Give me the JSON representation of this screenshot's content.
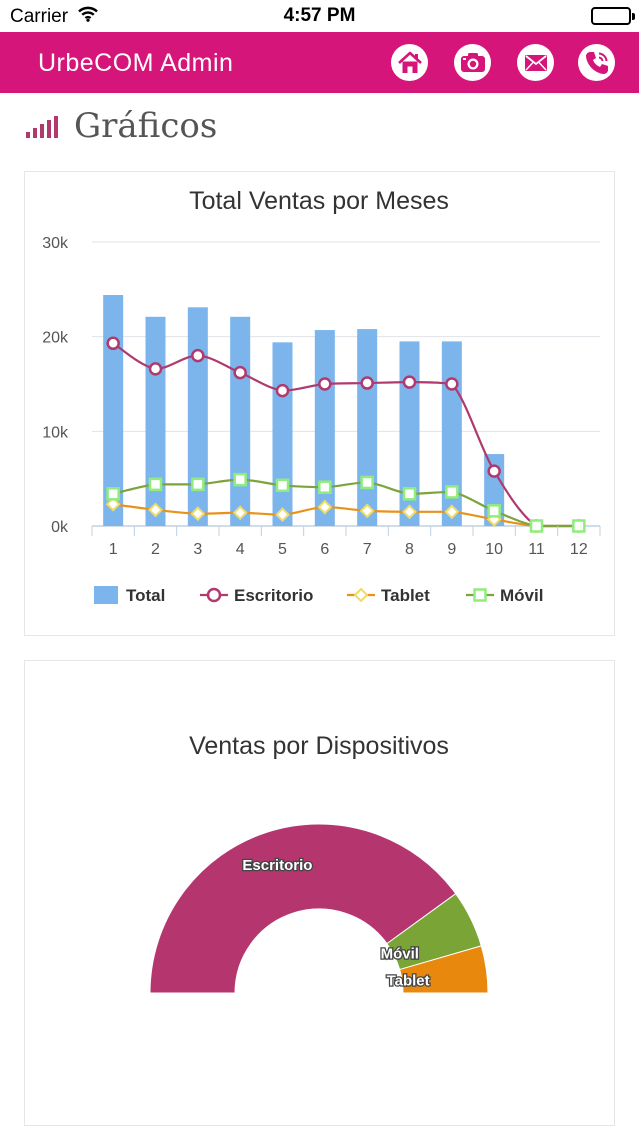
{
  "status_bar": {
    "carrier": "Carrier",
    "time": "4:57 PM"
  },
  "header": {
    "title": "UrbeCOM Admin",
    "buttons": [
      {
        "name": "home",
        "icon": "home-icon"
      },
      {
        "name": "camera",
        "icon": "camera-icon"
      },
      {
        "name": "mail",
        "icon": "mail-icon"
      },
      {
        "name": "phone",
        "icon": "phone-icon"
      }
    ],
    "accent_color": "#d6157a"
  },
  "page": {
    "title": "Gráficos",
    "icon": "signal-bars-icon"
  },
  "chart_data": [
    {
      "type": "bar",
      "title": "Total Ventas por Meses",
      "categories": [
        "1",
        "2",
        "3",
        "4",
        "5",
        "6",
        "7",
        "8",
        "9",
        "10",
        "11",
        "12"
      ],
      "y_ticks": [
        "0k",
        "10k",
        "20k",
        "30k"
      ],
      "ylim": [
        0,
        30000
      ],
      "grid": true,
      "legend_position": "bottom",
      "series": [
        {
          "name": "Total",
          "type": "bar",
          "color": "#7cb5ec",
          "values": [
            24400,
            22100,
            23100,
            22100,
            19400,
            20700,
            20800,
            19500,
            19500,
            7600,
            0,
            0
          ]
        },
        {
          "name": "Escritorio",
          "type": "line",
          "marker": "circle",
          "color": "#b03a6e",
          "values": [
            19300,
            16600,
            18000,
            16200,
            14300,
            15000,
            15100,
            15200,
            15000,
            5800,
            0,
            0
          ]
        },
        {
          "name": "Tablet",
          "type": "line",
          "marker": "diamond",
          "color": "#e8921a",
          "marker_color": "#f0dc64",
          "values": [
            2300,
            1700,
            1300,
            1400,
            1200,
            2000,
            1600,
            1500,
            1500,
            700,
            0,
            0
          ]
        },
        {
          "name": "Móvil",
          "type": "line",
          "marker": "square",
          "color": "#7ca43c",
          "marker_color": "#90ed7d",
          "values": [
            3400,
            4400,
            4400,
            4900,
            4300,
            4100,
            4600,
            3400,
            3600,
            1600,
            0,
            0
          ]
        }
      ]
    },
    {
      "type": "pie",
      "title": "Ventas por Dispositivos",
      "variant": "semi-donut",
      "slices": [
        {
          "label": "Escritorio",
          "value": 80,
          "color": "#b5366f"
        },
        {
          "label": "Móvil",
          "value": 11,
          "color": "#7aa436"
        },
        {
          "label": "Tablet",
          "value": 9,
          "color": "#e8880c"
        }
      ]
    }
  ]
}
